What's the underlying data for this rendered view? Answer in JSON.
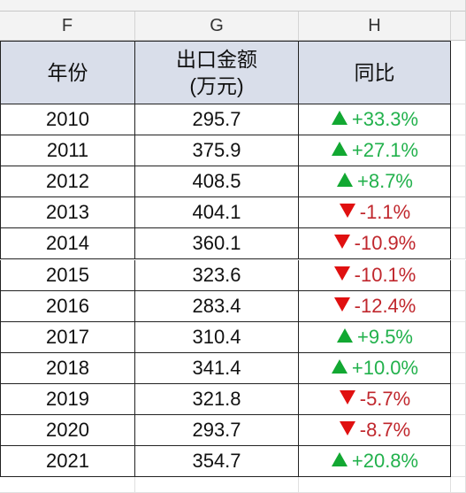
{
  "columns": [
    "F",
    "G",
    "H"
  ],
  "header": {
    "year": "年份",
    "amount": [
      "出口金额",
      "(万元)"
    ],
    "yoy": "同比"
  },
  "rows": [
    [
      "2010",
      "295.7",
      "+33.3%"
    ],
    [
      "2011",
      "375.9",
      "+27.1%"
    ],
    [
      "2012",
      "408.5",
      "+8.7%"
    ],
    [
      "2013",
      "404.1",
      "-1.1%"
    ],
    [
      "2014",
      "360.1",
      "-10.9%"
    ],
    [
      "2015",
      "323.6",
      "-10.1%"
    ],
    [
      "2016",
      "283.4",
      "-12.4%"
    ],
    [
      "2017",
      "310.4",
      "+9.5%"
    ],
    [
      "2018",
      "341.4",
      "+10.0%"
    ],
    [
      "2019",
      "321.8",
      "-5.7%"
    ],
    [
      "2020",
      "293.7",
      "-8.7%"
    ],
    [
      "2021",
      "354.7",
      "+20.8%"
    ]
  ]
}
